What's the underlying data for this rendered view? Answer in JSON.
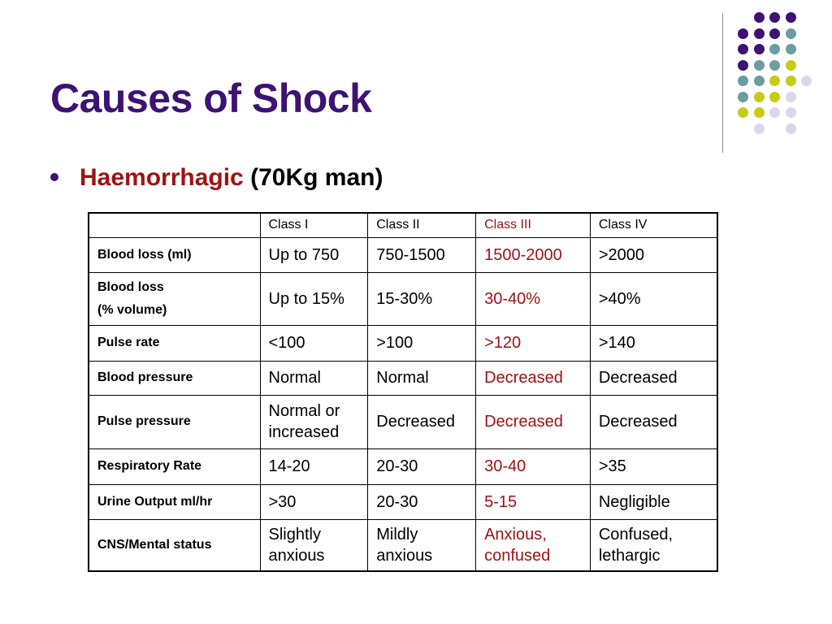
{
  "slide": {
    "title": "Causes of Shock",
    "bullet": {
      "key": "Haemorrhagic",
      "rest": "(70Kg man)"
    }
  },
  "colors": {
    "title": "#3d1273",
    "highlight": "#a01212",
    "dot_purple": "#3d1273",
    "dot_teal": "#6b9e9e",
    "dot_yellow": "#c9cc14",
    "dot_lavender": "#d8d8ea"
  },
  "table": {
    "headers": [
      "",
      "Class I",
      "Class II",
      "Class III",
      "Class IV"
    ],
    "highlight_column": 3,
    "rows": [
      {
        "label": [
          "Blood loss (ml)"
        ],
        "cells": [
          "Up to 750",
          "750-1500",
          "1500-2000",
          ">2000"
        ]
      },
      {
        "label": [
          "Blood loss",
          "(% volume)"
        ],
        "cells": [
          "Up to 15%",
          "15-30%",
          "30-40%",
          ">40%"
        ]
      },
      {
        "label": [
          "Pulse rate"
        ],
        "cells": [
          "<100",
          ">100",
          ">120",
          ">140"
        ]
      },
      {
        "label": [
          "Blood pressure"
        ],
        "cells": [
          "Normal",
          "Normal",
          "Decreased",
          "Decreased"
        ]
      },
      {
        "label": [
          "Pulse pressure"
        ],
        "cells": [
          [
            "Normal or",
            "increased"
          ],
          "Decreased",
          "Decreased",
          "Decreased"
        ]
      },
      {
        "label": [
          "Respiratory Rate"
        ],
        "cells": [
          "14-20",
          "20-30",
          "30-40",
          ">35"
        ]
      },
      {
        "label": [
          "Urine Output ml/hr"
        ],
        "cells": [
          ">30",
          "20-30",
          "5-15",
          "Negligible"
        ]
      },
      {
        "label": [
          "CNS/Mental status"
        ],
        "cells": [
          [
            "Slightly",
            "anxious"
          ],
          [
            "Mildly",
            "anxious"
          ],
          [
            "Anxious,",
            "confused"
          ],
          [
            "Confused,",
            "lethargic"
          ]
        ]
      }
    ]
  }
}
